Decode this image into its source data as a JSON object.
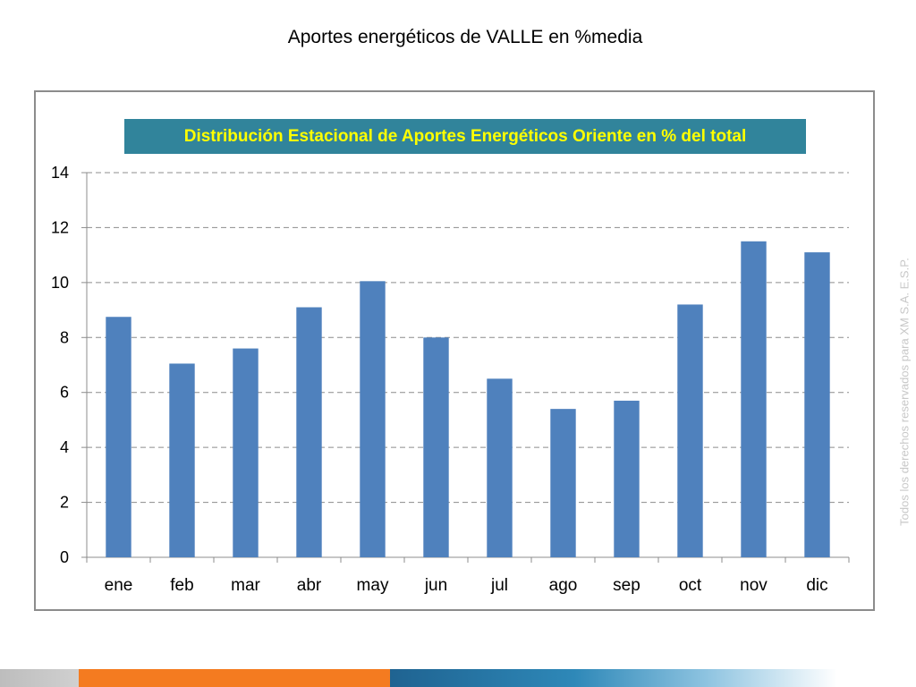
{
  "slide_title": "Aportes energéticos de VALLE en %media",
  "watermark": "Todos los derechos reservados para XM S.A. E.S.P.",
  "colors": {
    "bar": "#4f81bd",
    "title_banner": "#31849b",
    "title_text": "#ffff00",
    "footer_orange": "#f47b20",
    "footer_blue": "#1f6391"
  },
  "chart_data": {
    "type": "bar",
    "title": "Distribución Estacional de Aportes Energéticos Oriente en % del total",
    "categories": [
      "ene",
      "feb",
      "mar",
      "abr",
      "may",
      "jun",
      "jul",
      "ago",
      "sep",
      "oct",
      "nov",
      "dic"
    ],
    "values": [
      8.75,
      7.05,
      7.6,
      9.1,
      10.05,
      8.0,
      6.5,
      5.4,
      5.7,
      9.2,
      11.5,
      11.1
    ],
    "xlabel": "",
    "ylabel": "",
    "ylim": [
      0,
      14
    ],
    "yticks": [
      "0",
      "2",
      "4",
      "6",
      "8",
      "10",
      "12",
      "14"
    ],
    "grid": "horizontal dashed",
    "legend": "none"
  }
}
